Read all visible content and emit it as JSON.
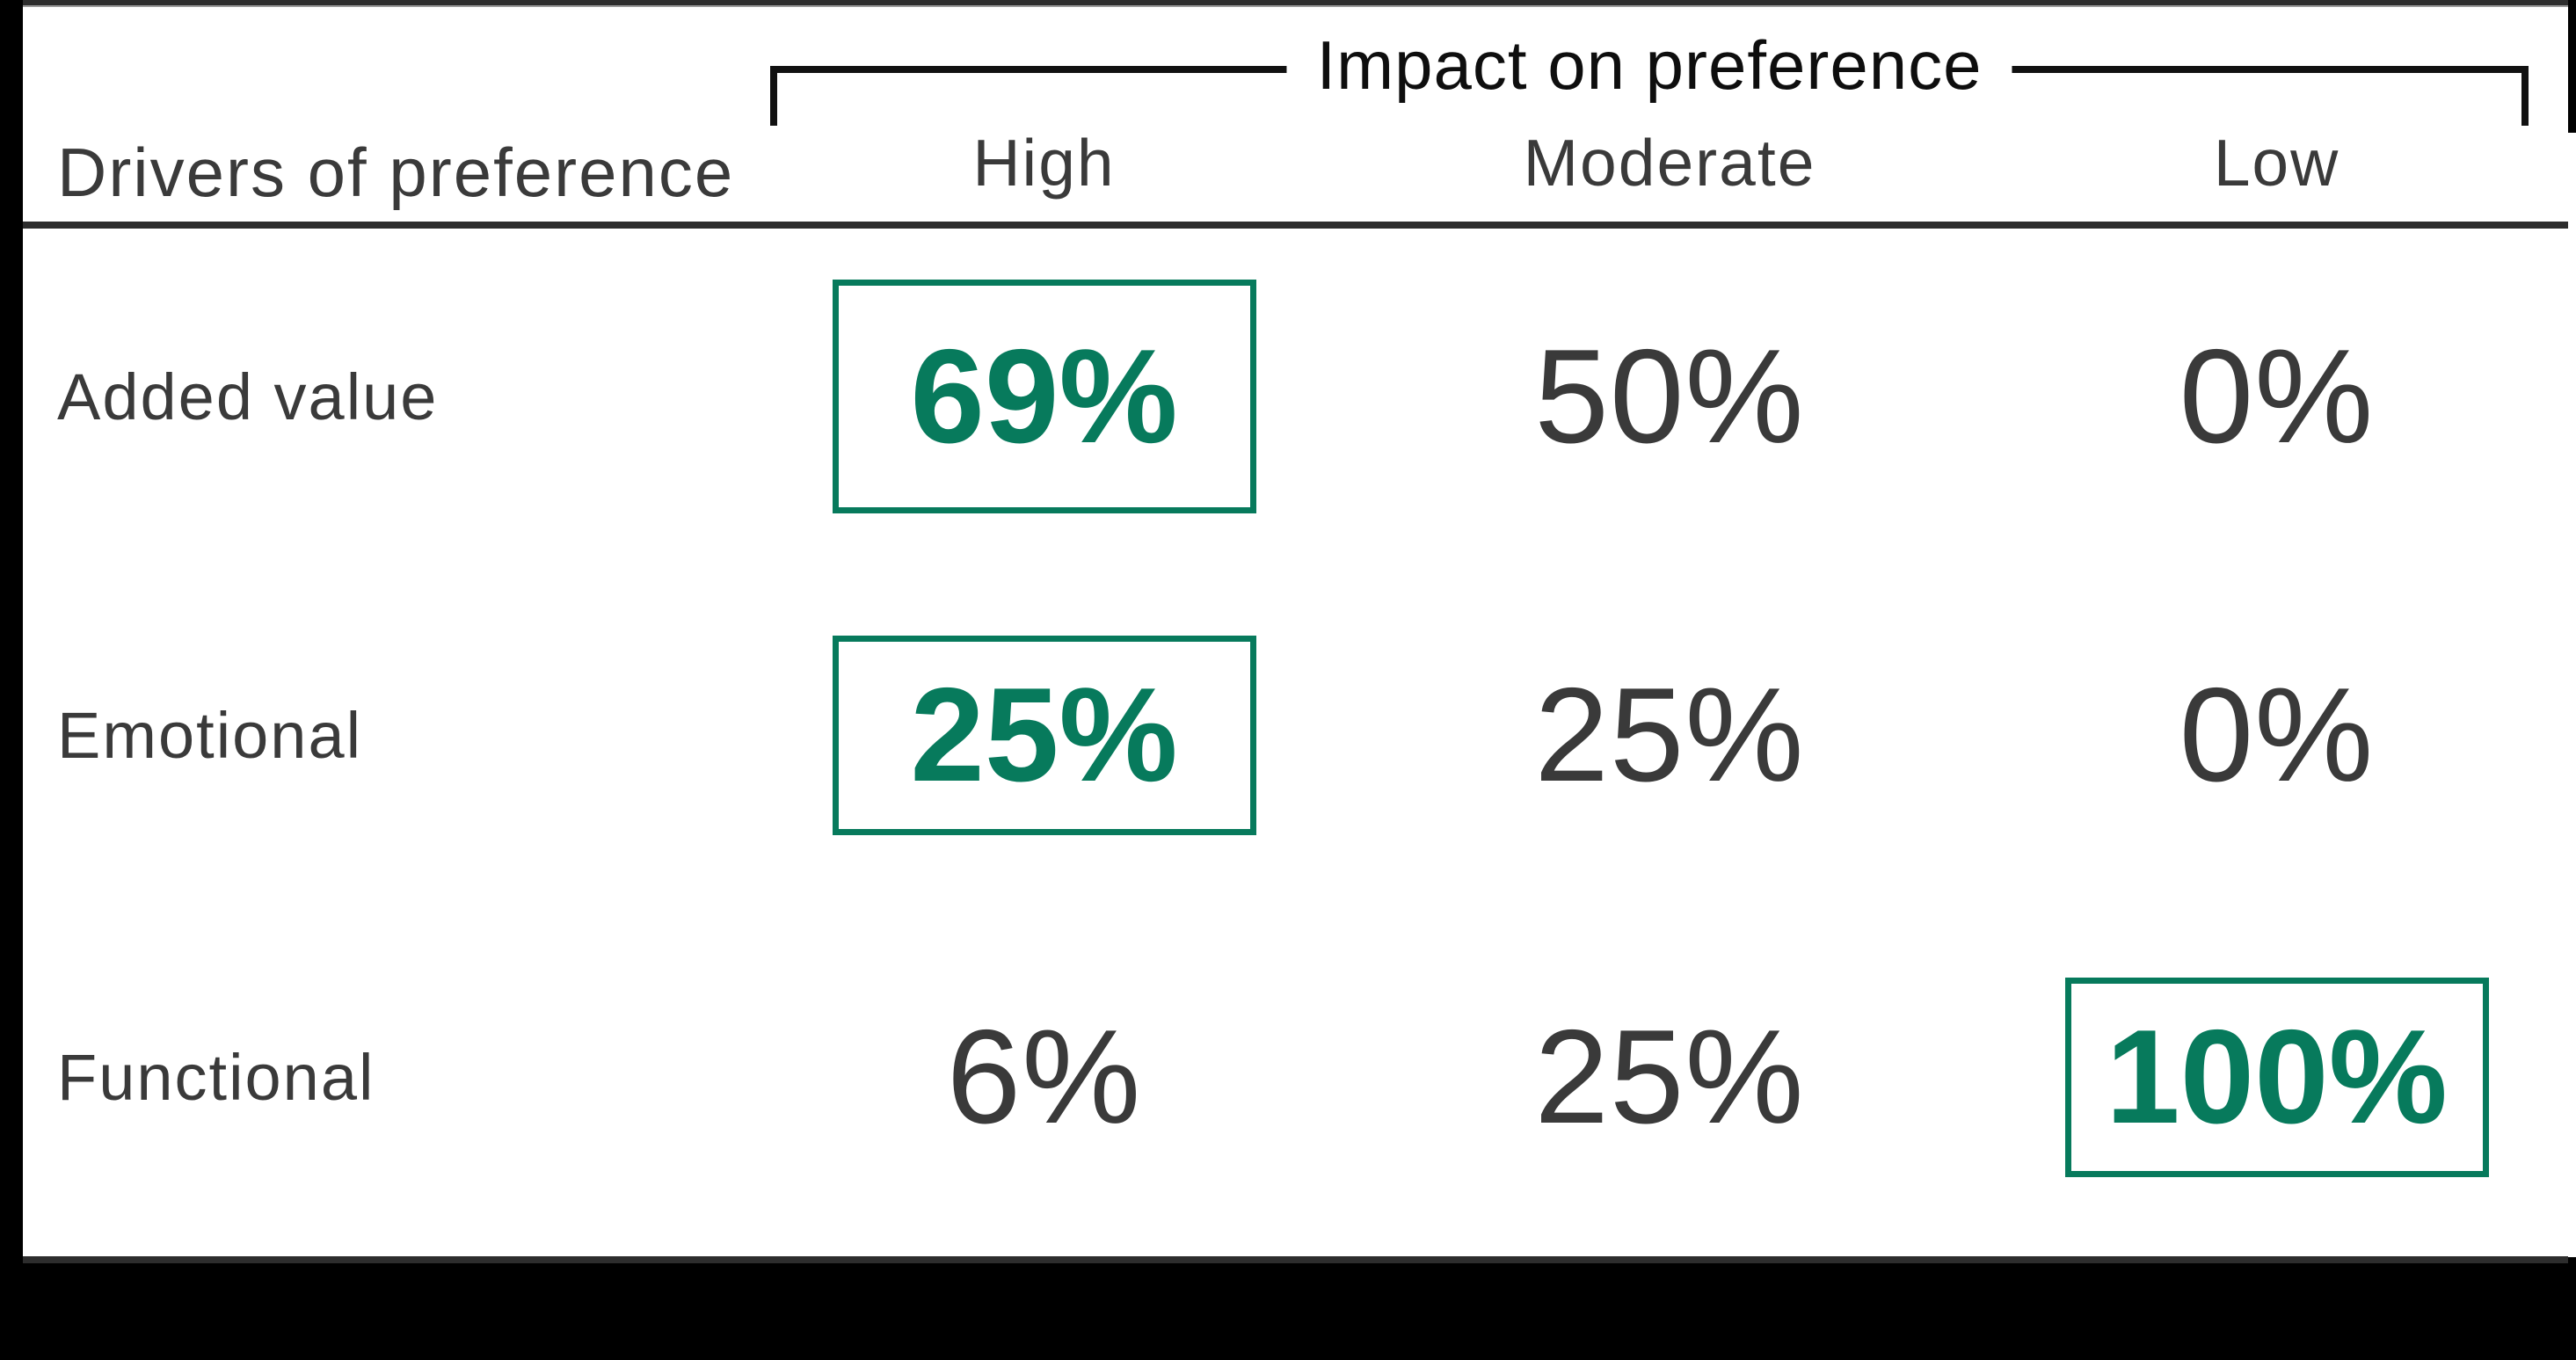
{
  "group_header": "Impact on preference",
  "table": {
    "corner_header": "Drivers of preference",
    "columns": [
      "High",
      "Moderate",
      "Low"
    ],
    "rows": [
      {
        "label": "Added value",
        "values": [
          "69%",
          "50%",
          "0%"
        ],
        "highlighted_column": "High"
      },
      {
        "label": "Emotional",
        "values": [
          "25%",
          "25%",
          "0%"
        ],
        "highlighted_column": "High"
      },
      {
        "label": "Functional",
        "values": [
          "6%",
          "25%",
          "100%"
        ],
        "highlighted_column": "Low"
      }
    ]
  },
  "chart_data": {
    "type": "table",
    "title": "Impact on preference",
    "row_header_label": "Drivers of preference",
    "columns": [
      "High",
      "Moderate",
      "Low"
    ],
    "rows": [
      {
        "label": "Added value",
        "values_pct": [
          69,
          50,
          0
        ],
        "highlighted": "High"
      },
      {
        "label": "Emotional",
        "values_pct": [
          25,
          25,
          0
        ],
        "highlighted": "High"
      },
      {
        "label": "Functional",
        "values_pct": [
          6,
          25,
          100
        ],
        "highlighted": "Low"
      }
    ],
    "legend_position": "none",
    "grid": "row-banding"
  },
  "colors": {
    "page_background": "#000000",
    "card_background": "#ffffff",
    "charcoal": "#2d2d2d",
    "row_stripe": "#f1f1f1",
    "text_dark": "#3a3a3a",
    "bracket_black": "#111111",
    "accent_green": "#077a5c"
  }
}
